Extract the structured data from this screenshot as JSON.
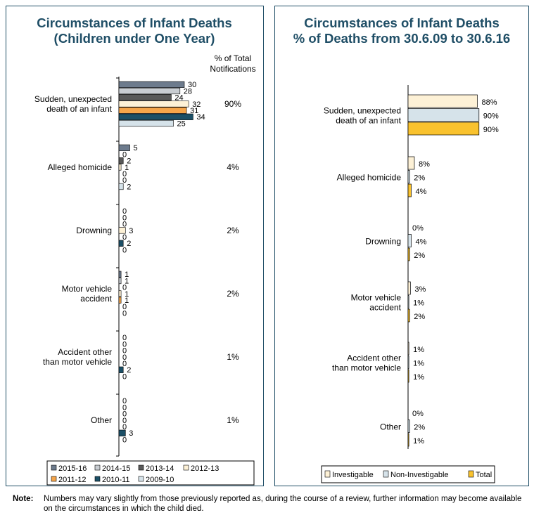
{
  "chart_data": [
    {
      "type": "bar",
      "orientation": "horizontal",
      "title": [
        "Circumstances of Infant Deaths",
        "(Children under One Year)"
      ],
      "column_header": [
        "% of Total",
        "Notifications"
      ],
      "categories": [
        [
          "Sudden, unexpected",
          "death of an infant"
        ],
        [
          "Alleged homicide"
        ],
        [
          "Drowning"
        ],
        [
          "Motor vehicle",
          "accident"
        ],
        [
          "Accident other",
          "than motor vehicle"
        ],
        [
          "Other"
        ]
      ],
      "percent_of_total": [
        "90%",
        "4%",
        "2%",
        "2%",
        "1%",
        "1%"
      ],
      "series": [
        {
          "name": "2015-16",
          "color": "#6d7b8d",
          "values": [
            30,
            5,
            0,
            1,
            0,
            0
          ]
        },
        {
          "name": "2014-15",
          "color": "#c9cdd2",
          "values": [
            28,
            0,
            0,
            1,
            0,
            0
          ]
        },
        {
          "name": "2013-14",
          "color": "#595959",
          "values": [
            24,
            2,
            0,
            0,
            0,
            0
          ]
        },
        {
          "name": "2012-13",
          "color": "#fdf1d6",
          "values": [
            32,
            1,
            3,
            1,
            0,
            0
          ]
        },
        {
          "name": "2011-12",
          "color": "#f5a54a",
          "values": [
            31,
            0,
            0,
            1,
            0,
            0
          ]
        },
        {
          "name": "2010-11",
          "color": "#1b4f66",
          "values": [
            34,
            0,
            2,
            0,
            2,
            3
          ]
        },
        {
          "name": "2009-10",
          "color": "#d6e3ea",
          "values": [
            25,
            2,
            0,
            0,
            0,
            0
          ]
        }
      ],
      "xlim": [
        0,
        40
      ],
      "grid": false,
      "legend_position": "bottom"
    },
    {
      "type": "bar",
      "orientation": "horizontal",
      "title": [
        "Circumstances of Infant Deaths",
        "% of Deaths from 30.6.09 to 30.6.16"
      ],
      "categories": [
        [
          "Sudden, unexpected",
          "death of an infant"
        ],
        [
          "Alleged homicide"
        ],
        [
          "Drowning"
        ],
        [
          "Motor vehicle",
          "accident"
        ],
        [
          "Accident other",
          "than motor vehicle"
        ],
        [
          "Other"
        ]
      ],
      "series": [
        {
          "name": "Investigable",
          "color": "#fdf1d6",
          "values": [
            88,
            8,
            0,
            3,
            1,
            0
          ],
          "labels": [
            "88%",
            "8%",
            "0%",
            "3%",
            "1%",
            "0%"
          ]
        },
        {
          "name": "Non-Investigable",
          "color": "#d6e3ea",
          "values": [
            90,
            2,
            4,
            1,
            1,
            2
          ],
          "labels": [
            "90%",
            "2%",
            "4%",
            "1%",
            "1%",
            "2%"
          ]
        },
        {
          "name": "Total",
          "color": "#f9c22e",
          "values": [
            90,
            4,
            2,
            2,
            1,
            1
          ],
          "labels": [
            "90%",
            "4%",
            "2%",
            "2%",
            "1%",
            "1%"
          ]
        }
      ],
      "xlim": [
        0,
        100
      ],
      "grid": false,
      "legend_position": "bottom"
    }
  ],
  "note": {
    "label": "Note",
    "text": "Numbers may vary slightly from those previously reported as, during the course of a review, further information may become available on the circumstances in which the child died."
  }
}
